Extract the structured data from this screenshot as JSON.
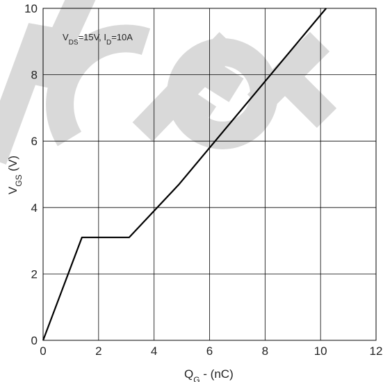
{
  "chart_data": {
    "type": "line",
    "xlabel_main": "Q",
    "xlabel_sub": "G",
    "xlabel_rest": " - (nC)",
    "ylabel_main": "V",
    "ylabel_sub": "GS",
    "ylabel_rest": " (V)",
    "xlim": [
      0,
      12
    ],
    "ylim": [
      0,
      10
    ],
    "xticks": [
      0,
      2,
      4,
      6,
      8,
      10,
      12
    ],
    "yticks": [
      0,
      2,
      4,
      6,
      8,
      10
    ],
    "grid": true,
    "annotation": {
      "p1": "V",
      "s1": "DS",
      "p2": "=15V, I",
      "s2": "D",
      "p3": "=10A"
    },
    "series": [
      {
        "x": [
          0,
          1.4,
          3.1,
          4.9,
          10.2
        ],
        "y": [
          0,
          3.1,
          3.1,
          4.7,
          10.0
        ]
      }
    ],
    "line_color": "#000000",
    "watermark": "NC FOR"
  }
}
